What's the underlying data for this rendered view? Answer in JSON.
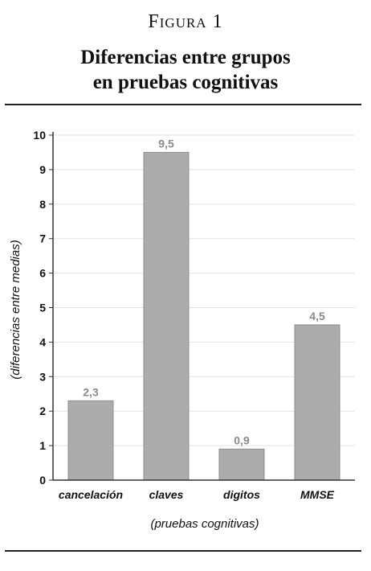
{
  "figure": {
    "label": "Figura 1",
    "title_line1": "Diferencias entre grupos",
    "title_line2": "en pruebas cognitivas"
  },
  "chart_data": {
    "type": "bar",
    "categories": [
      "cancelación",
      "claves",
      "digitos",
      "MMSE"
    ],
    "values": [
      2.3,
      9.5,
      0.9,
      4.5
    ],
    "value_labels": [
      "2,3",
      "9,5",
      "0,9",
      "4,5"
    ],
    "xlabel": "(pruebas cognitivas)",
    "ylabel": "(diferencias entre medias)",
    "ylim": [
      0,
      10
    ],
    "yticks": [
      0,
      1,
      2,
      3,
      4,
      5,
      6,
      7,
      8,
      9,
      10
    ],
    "grid": true,
    "colors": {
      "bar": "#acacac",
      "bar_border": "#8e8e8e",
      "value_label": "#8a8a8a",
      "grid": "#e2e2e2",
      "axis": "#333333",
      "text": "#111111"
    }
  }
}
